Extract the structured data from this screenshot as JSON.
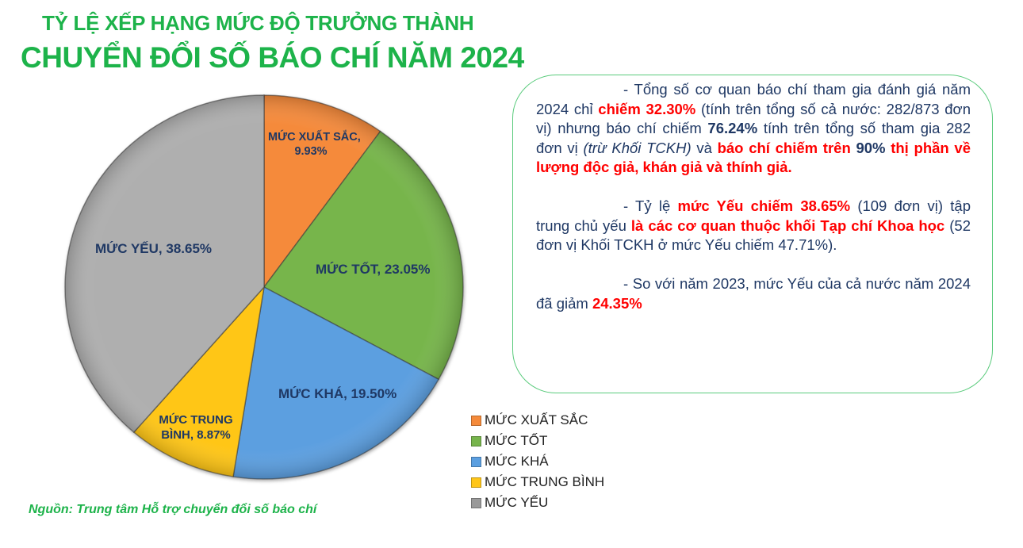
{
  "header": {
    "title_line1": "TỶ LỆ XẾP HẠNG MỨC ĐỘ TRƯỞNG THÀNH",
    "title_line2": "CHUYỂN ĐỔI SỐ BÁO CHÍ NĂM 2024"
  },
  "chart_data": {
    "type": "pie",
    "title": "TỶ LỆ XẾP HẠNG MỨC ĐỘ TRƯỞNG THÀNH CHUYỂN ĐỔI SỐ BÁO CHÍ NĂM 2024",
    "categories": [
      "MỨC XUẤT SẮC",
      "MỨC TỐT",
      "MỨC KHÁ",
      "MỨC TRUNG BÌNH",
      "MỨC YẾU"
    ],
    "values": [
      9.93,
      23.05,
      19.5,
      8.87,
      38.65
    ],
    "unit": "%",
    "colors": [
      "#F58A3A",
      "#77B54C",
      "#5B9FE0",
      "#FFC619",
      "#AFAFAF"
    ],
    "data_labels": [
      "MỨC XUẤT SẮC, 9.93%",
      "MỨC TỐT, 23.05%",
      "MỨC KHÁ, 19.50%",
      "MỨC TRUNG BÌNH, 8.87%",
      "MỨC YẾU, 38.65%"
    ],
    "start_angle": "12 o'clock",
    "direction": "clockwise",
    "legend_position": "bottom-right"
  },
  "slice_labels": [
    {
      "line1": "MỨC XUẤT SẮC,",
      "line2": "9.93%"
    },
    {
      "line1": "MỨC TỐT, 23.05%"
    },
    {
      "line1": "MỨC KHÁ, 19.50%"
    },
    {
      "line1": "MỨC TRUNG",
      "line2": "BÌNH, 8.87%"
    },
    {
      "line1": "MỨC YẾU, 38.65%"
    }
  ],
  "legend": {
    "items": [
      {
        "label": "MỨC XUẤT SẮC",
        "color": "#F58A3A"
      },
      {
        "label": "MỨC TỐT",
        "color": "#77B54C"
      },
      {
        "label": "MỨC KHÁ",
        "color": "#5B9FE0"
      },
      {
        "label": "MỨC TRUNG BÌNH",
        "color": "#FFC619"
      },
      {
        "label": "MỨC YẾU",
        "color": "#9A9A9A"
      }
    ]
  },
  "notes": {
    "p1": {
      "a": "- Tổng số cơ quan báo chí tham gia đánh giá năm 2024 chỉ ",
      "b_red": "chiếm 32.30%",
      "c": " (tính trên tổng số cả nước: 282/873 đơn vị) nhưng báo chí chiếm ",
      "d_bold": "76.24%",
      "e": " tính trên tổng số tham gia 282 đơn vị ",
      "f_italic": "(trừ Khối TCKH)",
      "g": " và ",
      "h_red": "báo chí chiếm trên ",
      "i_bold": "90%",
      "j_red": " thị phần về lượng độc giả, khán giả và thính giả."
    },
    "p2": {
      "a": "- Tỷ lệ ",
      "b_red": "mức Yếu chiếm 38.65%",
      "c": " (109 đơn vị) tập trung chủ yếu ",
      "d_red": "là các cơ quan thuộc khối Tạp chí Khoa học",
      "e": " (52 đơn vị Khối TCKH ở mức Yếu chiếm 47.71%)."
    },
    "p3": {
      "a": "- So với năm 2023, mức Yếu của cả nước năm 2024 đã giảm ",
      "b_red": "24.35%"
    }
  },
  "footer": {
    "source": "Nguồn: Trung tâm Hỗ trợ chuyển đổi số báo chí"
  }
}
